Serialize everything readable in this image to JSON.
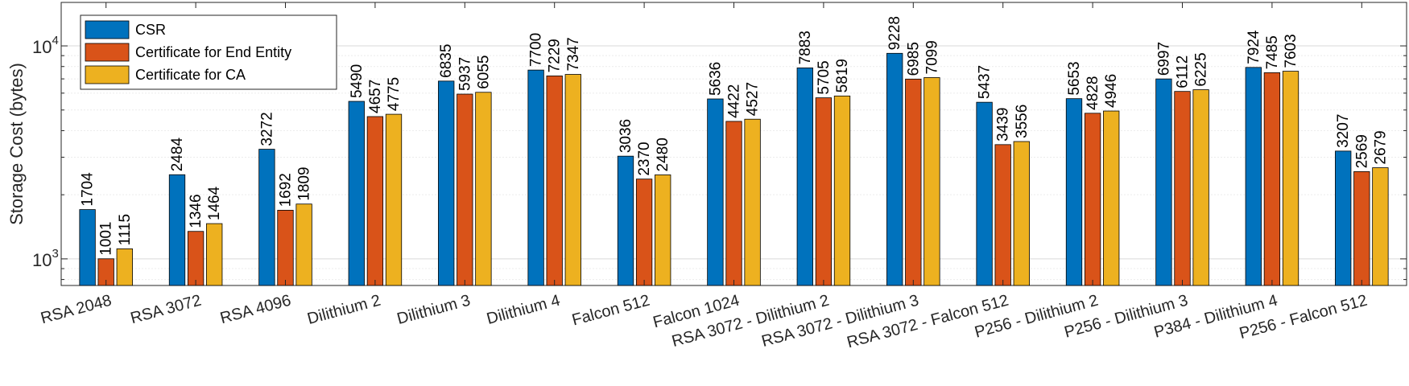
{
  "chart_data": {
    "type": "bar",
    "yscale": "log",
    "ylim": [
      750,
      16000
    ],
    "ylabel": "Storage Cost (bytes)",
    "xlabel": "",
    "grid": true,
    "legend_position": "top-left",
    "yticks": [
      {
        "value": 1000,
        "base": "10",
        "exp": "3"
      },
      {
        "value": 10000,
        "base": "10",
        "exp": "4"
      }
    ],
    "categories": [
      "RSA 2048",
      "RSA 3072",
      "RSA 4096",
      "Dilithium 2",
      "Dilithium 3",
      "Dilithium 4",
      "Falcon 512",
      "Falcon 1024",
      "RSA 3072 - Dilithium 2",
      "RSA 3072 - Dilithium 3",
      "RSA 3072 - Falcon 512",
      "P256 - Dilithium 2",
      "P256 - Dilithium 3",
      "P384 - Dilithium 4",
      "P256 - Falcon 512"
    ],
    "series": [
      {
        "name": "CSR",
        "color": "#0072BD",
        "values": [
          1704,
          2484,
          3272,
          5490,
          6835,
          7700,
          3036,
          5636,
          7883,
          9228,
          5437,
          5653,
          6997,
          7924,
          3207
        ]
      },
      {
        "name": "Certificate for End Entity",
        "color": "#D95319",
        "values": [
          1001,
          1346,
          1692,
          4657,
          5937,
          7229,
          2370,
          4422,
          5705,
          6985,
          3439,
          4828,
          6112,
          7485,
          2569
        ]
      },
      {
        "name": "Certificate for CA",
        "color": "#EDB120",
        "values": [
          1115,
          1464,
          1809,
          4775,
          6055,
          7347,
          2480,
          4527,
          5819,
          7099,
          3556,
          4946,
          6225,
          7603,
          2679
        ]
      }
    ]
  }
}
